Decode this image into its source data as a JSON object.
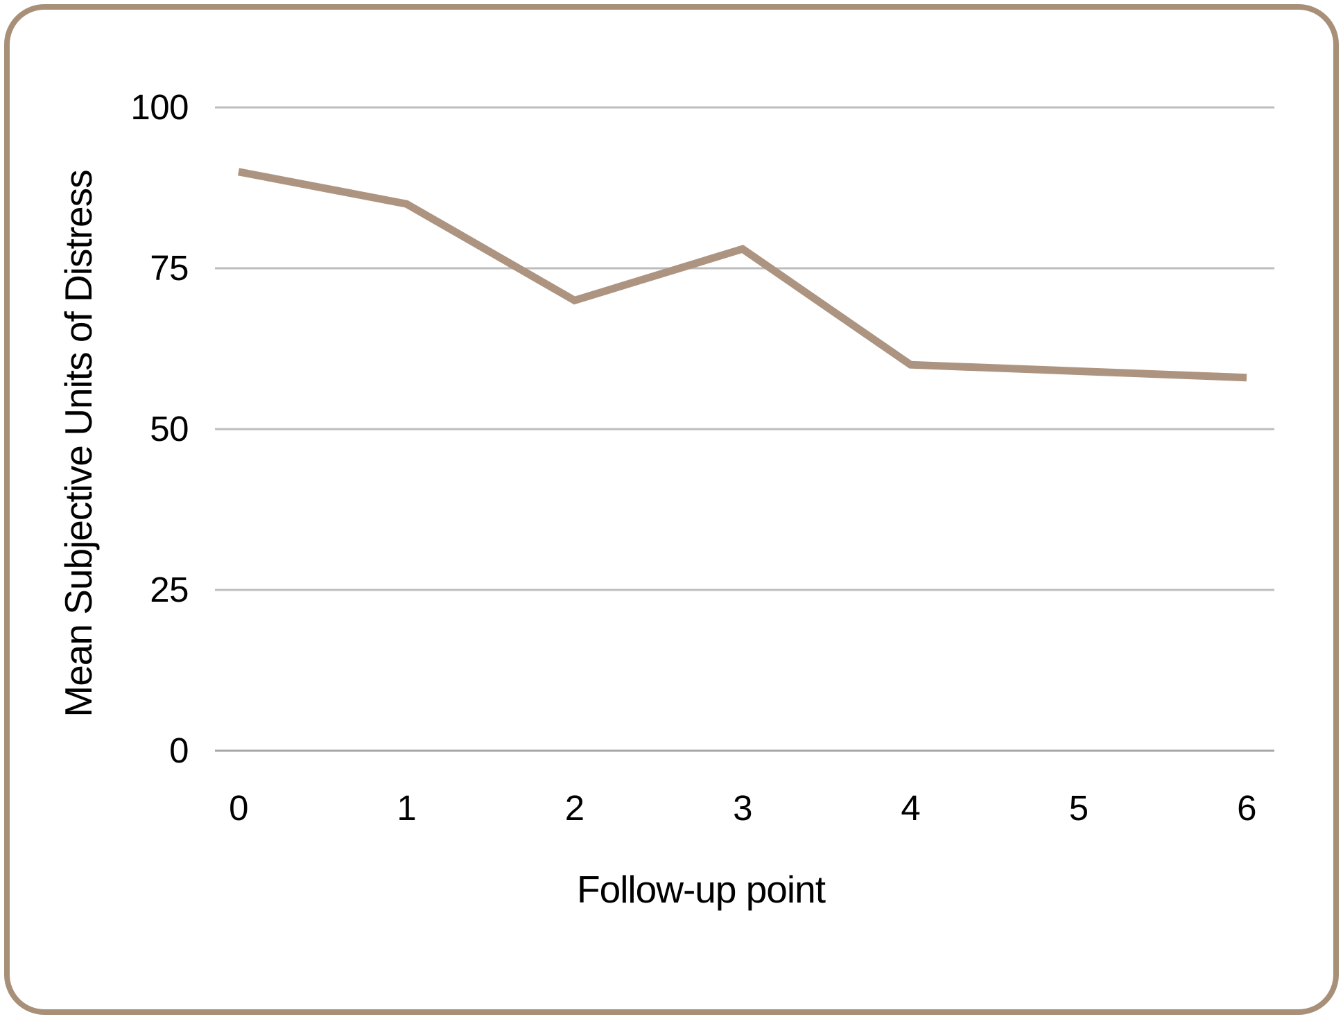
{
  "figure": {
    "frame_color": "#a89078",
    "background_color": "#ffffff"
  },
  "chart_data": {
    "type": "line",
    "title": "",
    "xlabel": "Follow-up point",
    "ylabel": "Mean Subjective Units of Distress",
    "categories": [
      0,
      1,
      2,
      3,
      4,
      5,
      6
    ],
    "series": [
      {
        "name": "Mean Subjective Units of Distress",
        "values": [
          90,
          85,
          70,
          78,
          60,
          59,
          58
        ]
      }
    ],
    "ylim": [
      0,
      100
    ],
    "yticks": [
      0,
      25,
      50,
      75,
      100
    ],
    "xticks": [
      "0",
      "1",
      "2",
      "3",
      "4",
      "5",
      "6"
    ],
    "grid": "horizontal",
    "legend": "none",
    "line_color": "#ad9480",
    "gridline_color": "#bdbdbd",
    "axis_line_color": "#a6a6a6",
    "text_color": "#000000"
  }
}
